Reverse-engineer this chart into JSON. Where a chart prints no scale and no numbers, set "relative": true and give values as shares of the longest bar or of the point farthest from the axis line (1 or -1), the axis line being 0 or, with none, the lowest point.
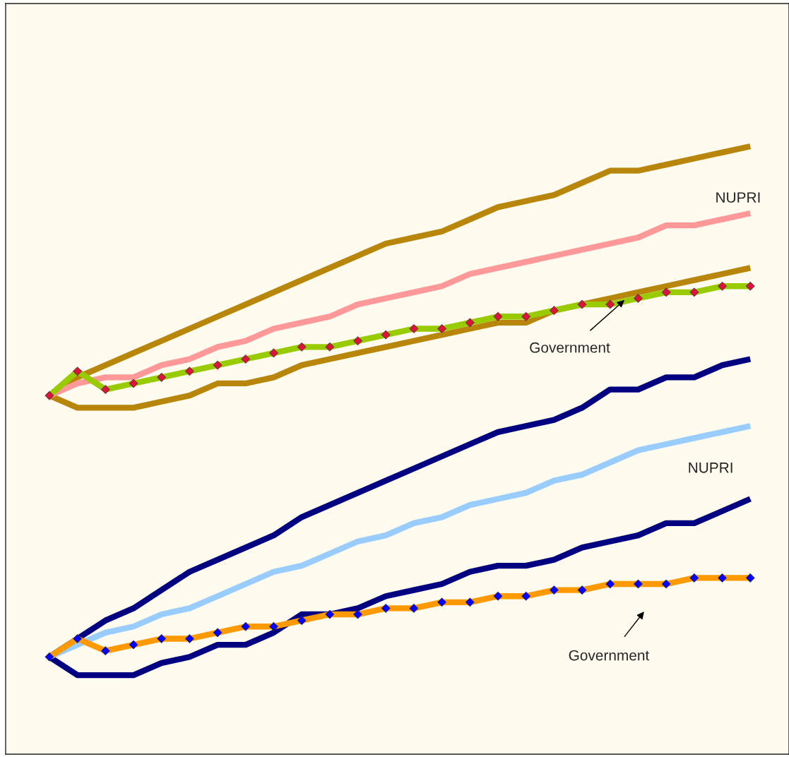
{
  "chart_data": {
    "type": "line",
    "relative": true,
    "categories": [
      null,
      null,
      null,
      null,
      null,
      null,
      null,
      null,
      null,
      null,
      null,
      null,
      null,
      null,
      null,
      null,
      null,
      null,
      null,
      null,
      null,
      null,
      null,
      null,
      null,
      null
    ],
    "series": [
      {
        "color": "#b8860b",
        "values": [
          0.59,
          0.62,
          0.64,
          0.66,
          0.68,
          0.7,
          0.72,
          0.74,
          0.76,
          0.78,
          0.8,
          0.82,
          0.84,
          0.85,
          0.86,
          0.88,
          0.9,
          0.91,
          0.92,
          0.94,
          0.96,
          0.96,
          0.97,
          0.98,
          0.99,
          1.0
        ]
      },
      {
        "color": "#b8860b",
        "values": [
          0.59,
          0.57,
          0.57,
          0.57,
          0.58,
          0.59,
          0.61,
          0.61,
          0.62,
          0.64,
          0.65,
          0.66,
          0.67,
          0.68,
          0.69,
          0.7,
          0.71,
          0.71,
          0.73,
          0.74,
          0.75,
          0.76,
          0.77,
          0.78,
          0.79,
          0.8
        ]
      },
      {
        "color": "#ff9999",
        "values": [
          0.59,
          0.61,
          0.62,
          0.62,
          0.64,
          0.65,
          0.67,
          0.68,
          0.7,
          0.71,
          0.72,
          0.74,
          0.75,
          0.76,
          0.77,
          0.79,
          0.8,
          0.81,
          0.82,
          0.83,
          0.84,
          0.85,
          0.87,
          0.87,
          0.88,
          0.89
        ]
      },
      {
        "color": "#99cc00",
        "marker": "diamond",
        "colors": [
          "#dc143c",
          "#dc143c",
          "#dc143c",
          "#dc143c",
          "#dc143c",
          "#dc143c",
          "#dc143c",
          "#dc143c",
          "#dc143c",
          "#dc143c",
          "#dc143c",
          "#dc143c",
          "#dc143c",
          "#dc143c",
          "#dc143c",
          "#dc143c",
          "#dc143c",
          "#dc143c",
          "#dc143c",
          "#dc143c",
          "#dc143c",
          "#dc143c",
          "#dc143c",
          "#dc143c",
          "#dc143c",
          "#dc143c"
        ],
        "values": [
          0.59,
          0.63,
          0.6,
          0.61,
          0.62,
          0.63,
          0.64,
          0.65,
          0.66,
          0.67,
          0.67,
          0.68,
          0.69,
          0.7,
          0.7,
          0.71,
          0.72,
          0.72,
          0.73,
          0.74,
          0.74,
          0.75,
          0.76,
          0.76,
          0.77,
          0.77
        ]
      },
      {
        "color": "#000080",
        "values": [
          0.16,
          0.19,
          0.22,
          0.24,
          0.27,
          0.3,
          0.32,
          0.34,
          0.36,
          0.39,
          0.41,
          0.43,
          0.45,
          0.47,
          0.49,
          0.51,
          0.53,
          0.54,
          0.55,
          0.57,
          0.6,
          0.6,
          0.62,
          0.62,
          0.64,
          0.65
        ]
      },
      {
        "color": "#000080",
        "values": [
          0.16,
          0.13,
          0.13,
          0.13,
          0.15,
          0.16,
          0.18,
          0.18,
          0.2,
          0.23,
          0.23,
          0.24,
          0.26,
          0.27,
          0.28,
          0.3,
          0.31,
          0.31,
          0.32,
          0.34,
          0.35,
          0.36,
          0.38,
          0.38,
          0.4,
          0.42
        ]
      },
      {
        "color": "#99ccff",
        "values": [
          0.16,
          0.18,
          0.2,
          0.21,
          0.23,
          0.24,
          0.26,
          0.28,
          0.3,
          0.31,
          0.33,
          0.35,
          0.36,
          0.38,
          0.39,
          0.41,
          0.42,
          0.43,
          0.45,
          0.46,
          0.48,
          0.5,
          0.51,
          0.52,
          0.53,
          0.54
        ]
      },
      {
        "color": "#ff9900",
        "marker": "diamond",
        "colors": [
          "#0000ff",
          "#0000ff",
          "#0000ff",
          "#0000ff",
          "#0000ff",
          "#0000ff",
          "#0000ff",
          "#0000ff",
          "#0000ff",
          "#0000ff",
          "#0000ff",
          "#0000ff",
          "#0000ff",
          "#0000ff",
          "#0000ff",
          "#0000ff",
          "#0000ff",
          "#0000ff",
          "#0000ff",
          "#0000ff",
          "#0000ff",
          "#0000ff",
          "#0000ff",
          "#0000ff",
          "#0000ff",
          "#0000ff"
        ],
        "values": [
          0.16,
          0.19,
          0.17,
          0.18,
          0.19,
          0.19,
          0.2,
          0.21,
          0.21,
          0.22,
          0.23,
          0.23,
          0.24,
          0.24,
          0.25,
          0.25,
          0.26,
          0.26,
          0.27,
          0.27,
          0.28,
          0.28,
          0.28,
          0.29,
          0.29,
          0.29
        ]
      }
    ],
    "annotations": [
      "NUPRI",
      "Government",
      "NUPRI",
      "Government"
    ],
    "grid": false,
    "legend": false
  }
}
